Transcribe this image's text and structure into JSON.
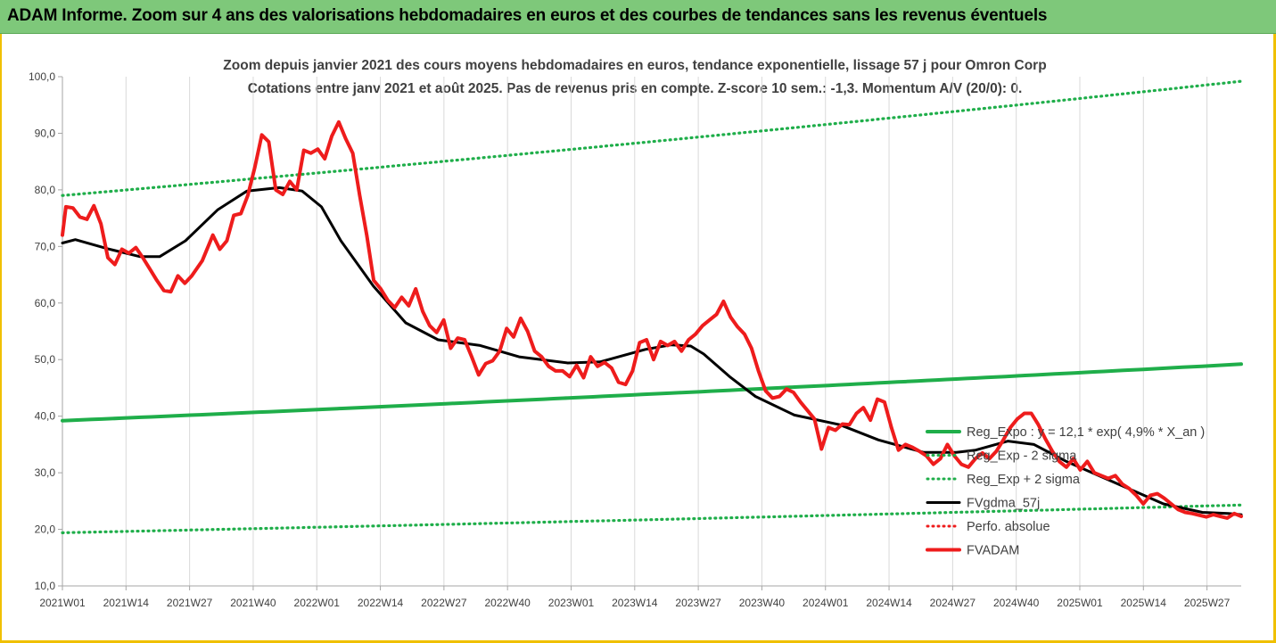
{
  "header": {
    "title": "ADAM Informe. Zoom sur 4 ans des valorisations hebdomadaires en euros et des courbes de tendances sans les revenus éventuels"
  },
  "colors": {
    "banner": "#7ec87a",
    "frame": "#f0c000",
    "trend": "#1fae4a",
    "smooth": "#000000",
    "price": "#ee1c1c"
  },
  "chart_data": {
    "type": "line",
    "title": "Zoom depuis janvier 2021 des cours moyens hebdomadaires en euros, tendance exponentielle, lissage 57 j pour Omron Corp",
    "subtitle": "Cotations entre janv 2021 et août 2025.  Pas de revenus pris en compte.  Z-score 10 sem.: -1,3. Momentum A/V (20/0): 0.",
    "x_ticks": [
      "2021W01",
      "2021W14",
      "2021W27",
      "2021W40",
      "2022W01",
      "2022W14",
      "2022W27",
      "2022W40",
      "2023W01",
      "2023W14",
      "2023W27",
      "2023W40",
      "2024W01",
      "2024W14",
      "2024W27",
      "2024W40",
      "2025W01",
      "2025W14",
      "2025W27"
    ],
    "y_ticks": [
      "10,0",
      "20,0",
      "30,0",
      "40,0",
      "50,0",
      "60,0",
      "70,0",
      "80,0",
      "90,0",
      "100,0"
    ],
    "ylim": [
      10,
      100
    ],
    "x_count": 242,
    "grid": "vertical",
    "legend_position": "right",
    "legend": [
      {
        "label": "Reg_Expo : y = 12,1 * exp( 4,9% *  X_an )",
        "style": "solid",
        "color": "#1fae4a"
      },
      {
        "label": "Reg_Exp - 2 sigma",
        "style": "dotted",
        "color": "#1fae4a"
      },
      {
        "label": "Reg_Exp + 2 sigma",
        "style": "dotted",
        "color": "#1fae4a"
      },
      {
        "label": "FVgdma_57j",
        "style": "solid",
        "color": "#000000"
      },
      {
        "label": "Perfo. absolue",
        "style": "dotted",
        "color": "#ee1c1c"
      },
      {
        "label": "FVADAM",
        "style": "solid",
        "color": "#ee1c1c"
      }
    ],
    "series": [
      {
        "name": "Reg_Expo : y = 12,1 * exp( 4,9% *  X_an )",
        "kind": "trend",
        "start": 39.2,
        "end": 49.2
      },
      {
        "name": "Reg_Exp - 2 sigma",
        "kind": "trend",
        "start": 19.4,
        "end": 24.3
      },
      {
        "name": "Reg_Exp + 2 sigma",
        "kind": "trend",
        "start": 79.0,
        "end": 99.2
      },
      {
        "name": "FVgdma_57j",
        "kind": "points",
        "points": [
          [
            0,
            70.6
          ],
          [
            4,
            71.2
          ],
          [
            14,
            69.6
          ],
          [
            24,
            68.2
          ],
          [
            30,
            68.2
          ],
          [
            38,
            71.0
          ],
          [
            48,
            76.5
          ],
          [
            57,
            79.8
          ],
          [
            67,
            80.4
          ],
          [
            74,
            79.8
          ],
          [
            80,
            77.0
          ],
          [
            86,
            71.0
          ],
          [
            96,
            63.0
          ],
          [
            106,
            56.5
          ],
          [
            116,
            53.5
          ],
          [
            129,
            52.5
          ],
          [
            141,
            50.5
          ],
          [
            156,
            49.4
          ],
          [
            166,
            49.6
          ],
          [
            180,
            51.8
          ],
          [
            188,
            52.6
          ],
          [
            194,
            52.4
          ],
          [
            198,
            51.0
          ],
          [
            206,
            47.0
          ],
          [
            214,
            43.5
          ],
          [
            226,
            40.2
          ],
          [
            240,
            38.5
          ],
          [
            252,
            35.8
          ],
          [
            266,
            33.6
          ],
          [
            276,
            33.6
          ],
          [
            282,
            34.0
          ],
          [
            292,
            35.6
          ],
          [
            300,
            35.0
          ],
          [
            310,
            32.0
          ],
          [
            318,
            30.0
          ],
          [
            328,
            27.5
          ],
          [
            340,
            24.5
          ],
          [
            352,
            23.0
          ],
          [
            360,
            22.8
          ],
          [
            364,
            22.6
          ]
        ]
      },
      {
        "name": "FVADAM",
        "kind": "points",
        "points": [
          [
            0,
            72.0
          ],
          [
            1,
            77.0
          ],
          [
            3,
            76.8
          ],
          [
            5,
            75.2
          ],
          [
            7,
            74.8
          ],
          [
            9,
            77.2
          ],
          [
            11,
            74.0
          ],
          [
            13,
            68.0
          ],
          [
            15,
            66.8
          ],
          [
            17,
            69.5
          ],
          [
            19,
            68.8
          ],
          [
            21,
            69.8
          ],
          [
            23,
            68.0
          ],
          [
            25,
            66.0
          ],
          [
            27,
            64.0
          ],
          [
            29,
            62.2
          ],
          [
            31,
            62.0
          ],
          [
            33,
            64.8
          ],
          [
            35,
            63.5
          ],
          [
            37,
            64.8
          ],
          [
            40,
            67.5
          ],
          [
            43,
            72.0
          ],
          [
            45,
            69.5
          ],
          [
            47,
            71.0
          ],
          [
            49,
            75.5
          ],
          [
            51,
            75.8
          ],
          [
            53,
            79.0
          ],
          [
            55,
            84.0
          ],
          [
            57,
            89.7
          ],
          [
            59,
            88.5
          ],
          [
            61,
            80.0
          ],
          [
            63,
            79.2
          ],
          [
            65,
            81.5
          ],
          [
            67,
            80.0
          ],
          [
            69,
            87.0
          ],
          [
            71,
            86.5
          ],
          [
            73,
            87.2
          ],
          [
            75,
            85.5
          ],
          [
            77,
            89.5
          ],
          [
            79,
            92.0
          ],
          [
            81,
            89.0
          ],
          [
            83,
            86.5
          ],
          [
            85,
            79.0
          ],
          [
            87,
            72.0
          ],
          [
            89,
            64.0
          ],
          [
            91,
            62.5
          ],
          [
            93,
            60.5
          ],
          [
            95,
            59.2
          ],
          [
            97,
            61.0
          ],
          [
            99,
            59.5
          ],
          [
            101,
            62.5
          ],
          [
            103,
            58.5
          ],
          [
            105,
            56.0
          ],
          [
            107,
            54.8
          ],
          [
            109,
            57.0
          ],
          [
            111,
            52.0
          ],
          [
            113,
            53.8
          ],
          [
            115,
            53.5
          ],
          [
            117,
            50.5
          ],
          [
            119,
            47.3
          ],
          [
            121,
            49.3
          ],
          [
            123,
            49.8
          ],
          [
            125,
            51.5
          ],
          [
            127,
            55.5
          ],
          [
            129,
            54.0
          ],
          [
            131,
            57.3
          ],
          [
            133,
            55.0
          ],
          [
            135,
            51.5
          ],
          [
            137,
            50.5
          ],
          [
            139,
            48.8
          ],
          [
            141,
            48.0
          ],
          [
            143,
            48.0
          ],
          [
            145,
            47.0
          ],
          [
            147,
            49.0
          ],
          [
            149,
            46.8
          ],
          [
            151,
            50.5
          ],
          [
            153,
            48.8
          ],
          [
            155,
            49.5
          ],
          [
            157,
            48.5
          ],
          [
            159,
            46.0
          ],
          [
            161,
            45.6
          ],
          [
            163,
            48.0
          ],
          [
            165,
            53.0
          ],
          [
            167,
            53.5
          ],
          [
            169,
            50.0
          ],
          [
            171,
            53.2
          ],
          [
            173,
            52.5
          ],
          [
            175,
            53.2
          ],
          [
            177,
            51.5
          ],
          [
            179,
            53.5
          ],
          [
            181,
            54.5
          ],
          [
            183,
            56.0
          ],
          [
            185,
            57.0
          ],
          [
            187,
            58.0
          ],
          [
            189,
            60.3
          ],
          [
            191,
            57.5
          ],
          [
            193,
            55.8
          ],
          [
            195,
            54.5
          ],
          [
            197,
            52.0
          ],
          [
            199,
            48.0
          ],
          [
            201,
            44.5
          ],
          [
            203,
            43.2
          ],
          [
            205,
            43.5
          ],
          [
            207,
            44.8
          ],
          [
            209,
            44.2
          ],
          [
            211,
            42.5
          ],
          [
            213,
            41.0
          ],
          [
            215,
            39.5
          ],
          [
            217,
            34.2
          ],
          [
            219,
            38.0
          ],
          [
            221,
            37.5
          ],
          [
            223,
            38.6
          ],
          [
            225,
            38.5
          ],
          [
            227,
            40.5
          ],
          [
            229,
            41.5
          ],
          [
            231,
            39.3
          ],
          [
            233,
            43.0
          ],
          [
            235,
            42.5
          ],
          [
            237,
            38.0
          ],
          [
            239,
            34.0
          ],
          [
            241,
            35.0
          ],
          [
            243,
            34.5
          ],
          [
            245,
            33.8
          ],
          [
            247,
            33.0
          ],
          [
            249,
            31.5
          ],
          [
            251,
            32.5
          ],
          [
            253,
            35.0
          ],
          [
            255,
            33.0
          ],
          [
            257,
            31.5
          ],
          [
            259,
            31.0
          ],
          [
            261,
            32.5
          ],
          [
            263,
            33.5
          ],
          [
            265,
            32.5
          ],
          [
            267,
            33.8
          ],
          [
            269,
            35.8
          ],
          [
            271,
            38.0
          ],
          [
            273,
            39.5
          ],
          [
            275,
            40.5
          ],
          [
            277,
            40.5
          ],
          [
            279,
            38.5
          ],
          [
            281,
            36.0
          ],
          [
            283,
            33.8
          ],
          [
            285,
            32.0
          ],
          [
            287,
            31.0
          ],
          [
            289,
            32.5
          ],
          [
            291,
            30.5
          ],
          [
            293,
            32.0
          ],
          [
            295,
            30.0
          ],
          [
            297,
            29.5
          ],
          [
            299,
            29.0
          ],
          [
            301,
            29.5
          ],
          [
            303,
            28.0
          ],
          [
            305,
            27.2
          ],
          [
            307,
            26.0
          ],
          [
            309,
            24.5
          ],
          [
            311,
            26.0
          ],
          [
            313,
            26.3
          ],
          [
            315,
            25.5
          ],
          [
            317,
            24.5
          ],
          [
            319,
            23.5
          ],
          [
            321,
            23.0
          ],
          [
            323,
            22.8
          ],
          [
            325,
            22.5
          ],
          [
            327,
            22.2
          ],
          [
            329,
            22.6
          ],
          [
            331,
            22.3
          ],
          [
            333,
            22.0
          ],
          [
            335,
            22.8
          ],
          [
            337,
            22.3
          ]
        ]
      }
    ]
  }
}
